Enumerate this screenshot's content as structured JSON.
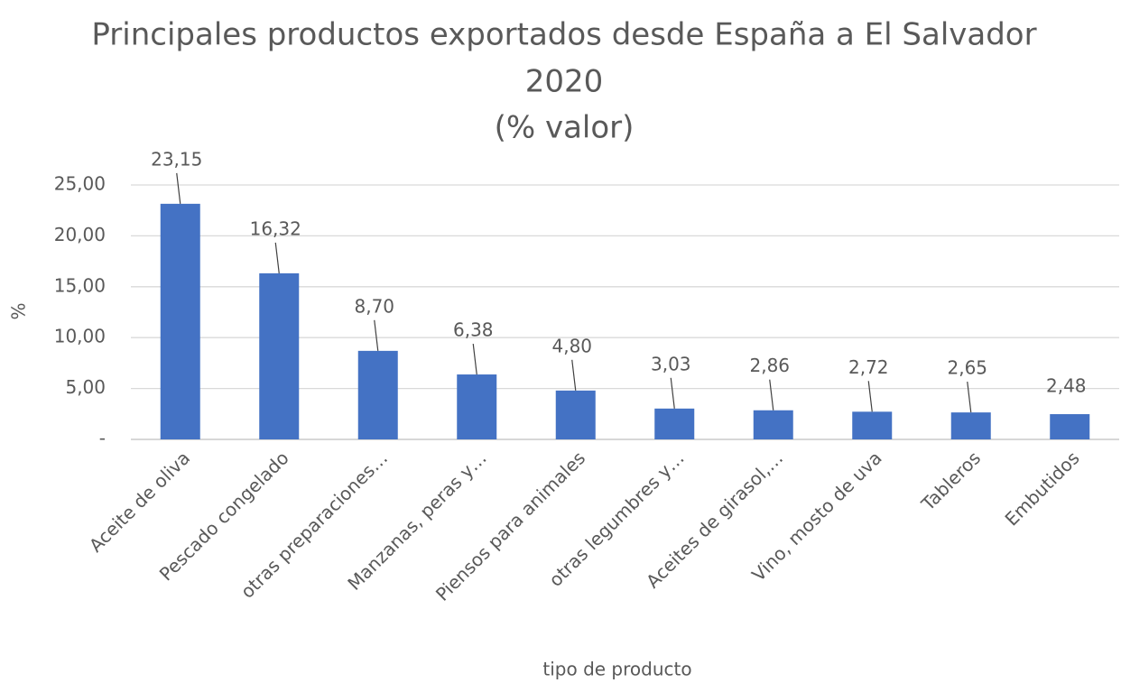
{
  "chart_data": {
    "type": "bar",
    "title": [
      "Principales productos exportados desde España a El Salvador",
      "2020",
      "(% valor)"
    ],
    "x_label": "tipo de producto",
    "y_label": "%",
    "categories": [
      "Aceite de oliva",
      "Pescado congelado",
      "otras preparaciones…",
      "Manzanas, peras y…",
      "Piensos para animales",
      "otras legumbres y…",
      "Aceites de girasol,…",
      "Vino, mosto de uva",
      "Tableros",
      "Embutidos"
    ],
    "values": [
      23.15,
      16.32,
      8.7,
      6.38,
      4.8,
      3.03,
      2.86,
      2.72,
      2.65,
      2.48
    ],
    "value_labels": [
      "23,15",
      "16,32",
      "8,70",
      "6,38",
      "4,80",
      "3,03",
      "2,86",
      "2,72",
      "2,65",
      "2,48"
    ],
    "color": "#4472c4",
    "ylim": [
      0,
      25
    ],
    "yticks": [
      {
        "value": 0,
        "label": "-"
      },
      {
        "value": 5,
        "label": "5,00"
      },
      {
        "value": 10,
        "label": "10,00"
      },
      {
        "value": 15,
        "label": "15,00"
      },
      {
        "value": 20,
        "label": "20,00"
      },
      {
        "value": 25,
        "label": "25,00"
      }
    ],
    "grid": true
  }
}
